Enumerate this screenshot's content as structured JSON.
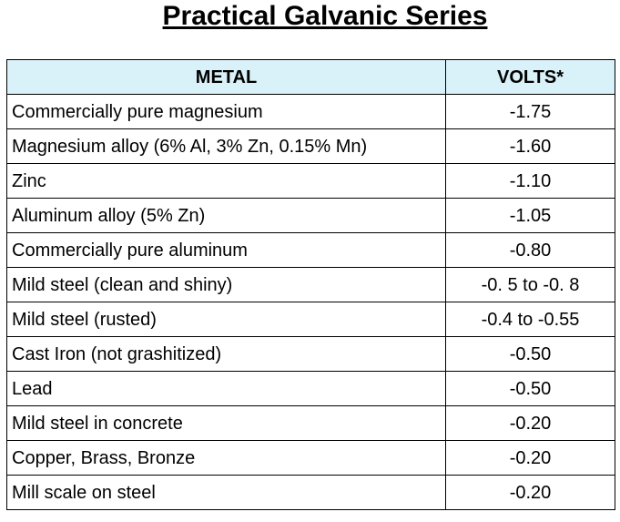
{
  "header": {
    "title": "Practical Galvanic Series"
  },
  "table": {
    "columns": [
      "METAL",
      "VOLTS*"
    ],
    "rows": [
      [
        "Commercially pure magnesium",
        "-1.75"
      ],
      [
        "Magnesium alloy (6% Al, 3% Zn, 0.15% Mn)",
        "-1.60"
      ],
      [
        "Zinc",
        "-1.10"
      ],
      [
        "Aluminum alloy (5% Zn)",
        "-1.05"
      ],
      [
        "Commercially pure aluminum",
        "-0.80"
      ],
      [
        "Mild steel (clean and shiny)",
        "-0. 5 to -0. 8"
      ],
      [
        "Mild steel (rusted)",
        "-0.4 to -0.55"
      ],
      [
        "Cast Iron (not grashitized)",
        "-0.50"
      ],
      [
        "Lead",
        "-0.50"
      ],
      [
        "Mild steel in concrete",
        "-0.20"
      ],
      [
        "Copper, Brass, Bronze",
        "-0.20"
      ],
      [
        "Mill scale on steel",
        "-0.20"
      ]
    ]
  }
}
